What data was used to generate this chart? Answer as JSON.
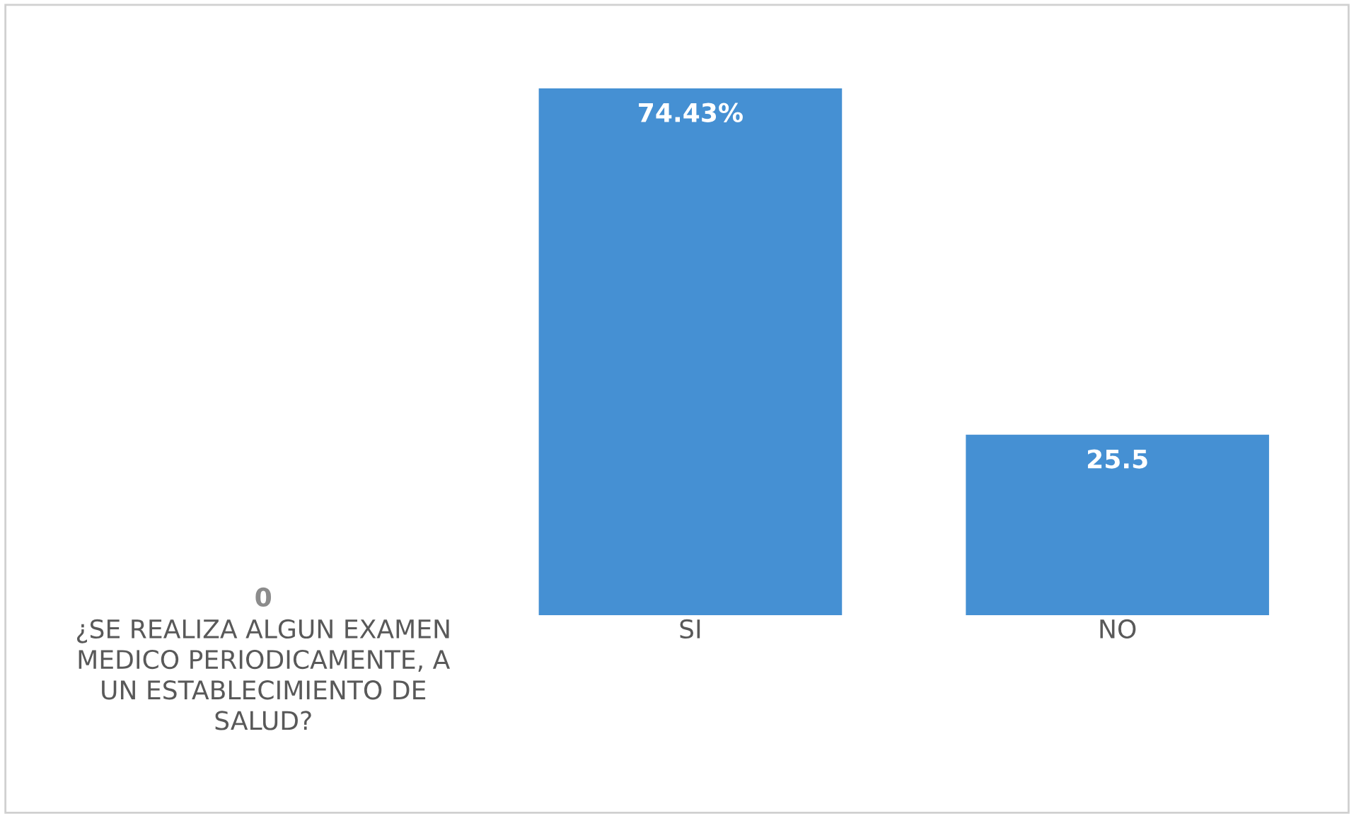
{
  "chart_data": {
    "type": "bar",
    "categories": [
      "¿SE REALIZA ALGUN EXAMEN MEDICO PERIODICAMENTE, A UN ESTABLECIMIENTO DE SALUD?",
      "SI",
      "NO"
    ],
    "values": [
      0,
      74.43,
      25.5
    ],
    "value_labels": [
      "0",
      "74.43%",
      "25.5"
    ],
    "color": "#4590d3"
  }
}
